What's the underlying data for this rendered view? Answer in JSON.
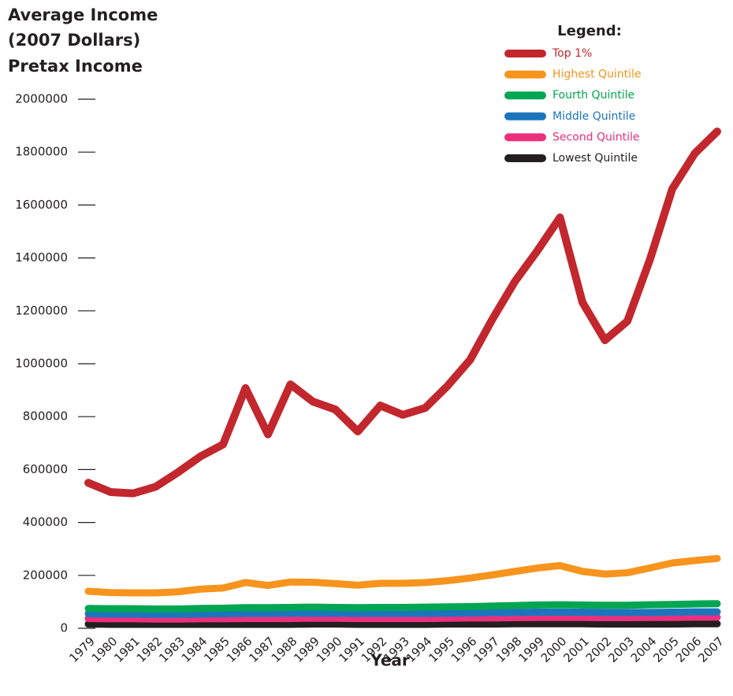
{
  "chart_data": {
    "type": "line",
    "title": [
      "Average Income",
      "(2007 Dollars)",
      "Pretax Income"
    ],
    "x_label": "Year",
    "legend_title": "Legend:",
    "legend": "top-right",
    "x": [
      1979,
      1980,
      1981,
      1982,
      1983,
      1984,
      1985,
      1986,
      1987,
      1988,
      1989,
      1990,
      1991,
      1992,
      1993,
      1994,
      1995,
      1996,
      1997,
      1998,
      1999,
      2000,
      2001,
      2002,
      2003,
      2004,
      2005,
      2006,
      2007
    ],
    "xlim": [
      1979,
      2007
    ],
    "ylim": [
      0,
      2000000
    ],
    "yticks": [
      0,
      200000,
      400000,
      600000,
      800000,
      1000000,
      1200000,
      1400000,
      1600000,
      1800000,
      2000000
    ],
    "series": [
      {
        "name": "Top 1%",
        "color": "#c1272d",
        "values": [
          550000,
          515000,
          510000,
          535000,
          590000,
          650000,
          695000,
          908000,
          733000,
          922000,
          857000,
          827000,
          744000,
          842000,
          807000,
          833000,
          917000,
          1015000,
          1170000,
          1312000,
          1428000,
          1553000,
          1232000,
          1089000,
          1161000,
          1393000,
          1661000,
          1795000,
          1878000
        ]
      },
      {
        "name": "Highest Quintile",
        "color": "#f7941d",
        "values": [
          140000,
          135000,
          134000,
          134000,
          138000,
          148000,
          152000,
          173000,
          162000,
          175000,
          174000,
          169000,
          163000,
          170000,
          170000,
          173000,
          180000,
          190000,
          202000,
          215000,
          228000,
          237000,
          215000,
          205000,
          210000,
          228000,
          247000,
          256000,
          264000
        ]
      },
      {
        "name": "Fourth Quintile",
        "color": "#00a651",
        "values": [
          75000,
          74000,
          74000,
          73000,
          73000,
          75000,
          76000,
          78000,
          78000,
          79000,
          80000,
          79000,
          78000,
          79000,
          79000,
          80000,
          81000,
          82000,
          84000,
          86000,
          88000,
          89000,
          88000,
          87000,
          87000,
          89000,
          90000,
          92000,
          93000
        ]
      },
      {
        "name": "Middle Quintile",
        "color": "#1c75bc",
        "values": [
          55000,
          54000,
          54000,
          53000,
          53000,
          54000,
          55000,
          56000,
          56000,
          57000,
          57000,
          57000,
          56000,
          56000,
          56000,
          56000,
          57000,
          58000,
          59000,
          60000,
          61000,
          61000,
          61000,
          60000,
          60000,
          60000,
          61000,
          62000,
          62000
        ]
      },
      {
        "name": "Second Quintile",
        "color": "#ec2f7c",
        "values": [
          37000,
          36000,
          36000,
          35000,
          35000,
          36000,
          36000,
          37000,
          37000,
          37000,
          38000,
          38000,
          37000,
          37000,
          37000,
          37000,
          38000,
          39000,
          39000,
          40000,
          41000,
          41000,
          41000,
          40000,
          40000,
          41000,
          41000,
          42000,
          42000
        ]
      },
      {
        "name": "Lowest Quintile",
        "color": "#231f20",
        "values": [
          16000,
          15000,
          15000,
          15000,
          15000,
          15000,
          15000,
          15000,
          15000,
          15000,
          16000,
          16000,
          15000,
          15000,
          15000,
          15000,
          16000,
          16000,
          16000,
          17000,
          17000,
          17000,
          17000,
          16000,
          16000,
          16000,
          16000,
          17000,
          17000
        ]
      }
    ]
  }
}
